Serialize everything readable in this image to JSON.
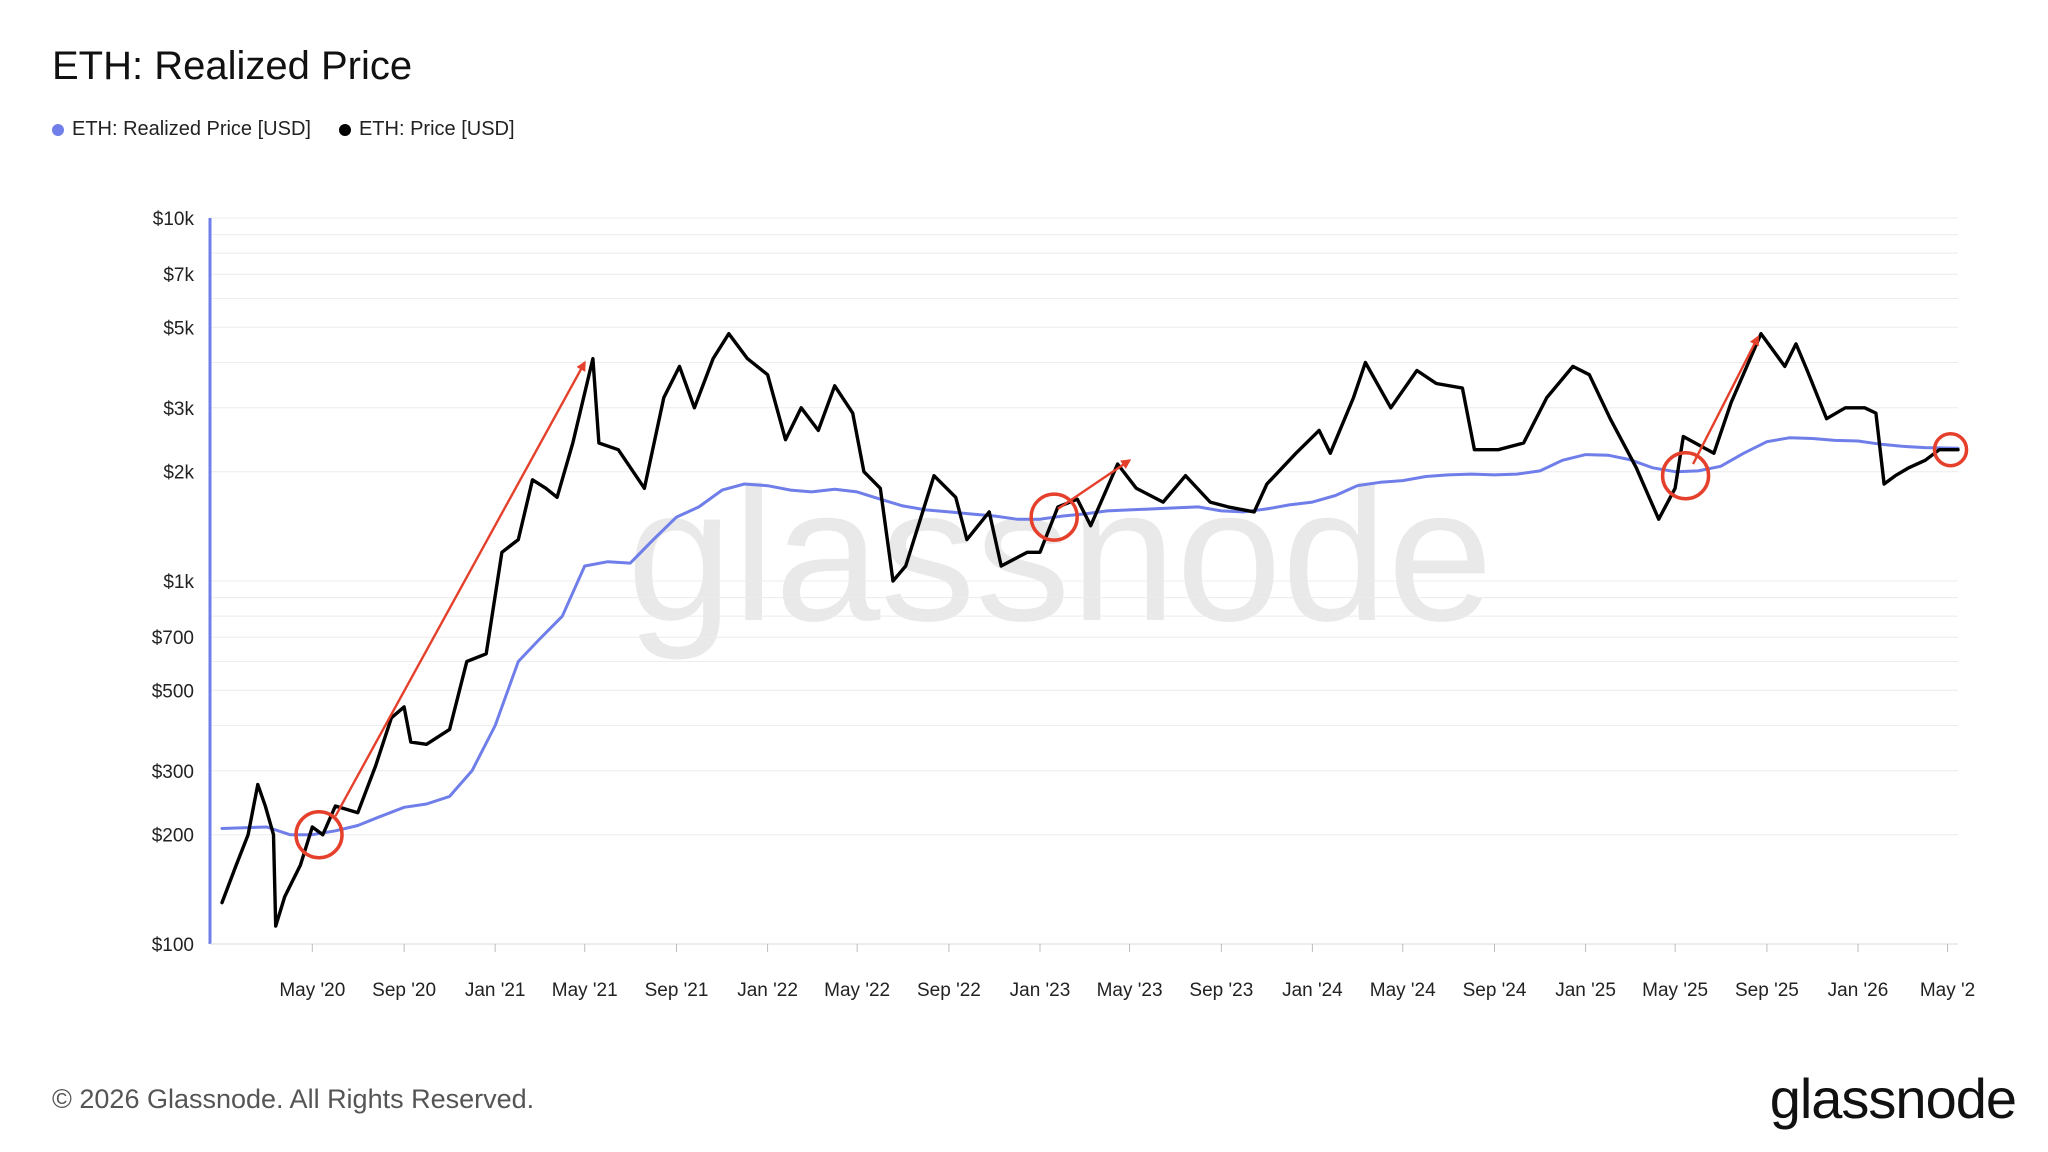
{
  "chart_data": {
    "type": "line",
    "title": "ETH: Realized Price",
    "yscale": "log",
    "ylim": [
      100,
      10000
    ],
    "xlim": [
      "2020-01-01",
      "2026-05-15"
    ],
    "grid": true,
    "legend_position": "top-left",
    "y_ticks": [
      {
        "value": 10000,
        "label": "$10k"
      },
      {
        "value": 7000,
        "label": "$7k"
      },
      {
        "value": 5000,
        "label": "$5k"
      },
      {
        "value": 3000,
        "label": "$3k"
      },
      {
        "value": 2000,
        "label": "$2k"
      },
      {
        "value": 1000,
        "label": "$1k"
      },
      {
        "value": 700,
        "label": "$700"
      },
      {
        "value": 500,
        "label": "$500"
      },
      {
        "value": 300,
        "label": "$300"
      },
      {
        "value": 200,
        "label": "$200"
      },
      {
        "value": 100,
        "label": "$100"
      }
    ],
    "x_ticks": [
      {
        "date": "2020-05-01",
        "label": "May '20"
      },
      {
        "date": "2020-09-01",
        "label": "Sep '20"
      },
      {
        "date": "2021-01-01",
        "label": "Jan '21"
      },
      {
        "date": "2021-05-01",
        "label": "May '21"
      },
      {
        "date": "2021-09-01",
        "label": "Sep '21"
      },
      {
        "date": "2022-01-01",
        "label": "Jan '22"
      },
      {
        "date": "2022-05-01",
        "label": "May '22"
      },
      {
        "date": "2022-09-01",
        "label": "Sep '22"
      },
      {
        "date": "2023-01-01",
        "label": "Jan '23"
      },
      {
        "date": "2023-05-01",
        "label": "May '23"
      },
      {
        "date": "2023-09-01",
        "label": "Sep '23"
      },
      {
        "date": "2024-01-01",
        "label": "Jan '24"
      },
      {
        "date": "2024-05-01",
        "label": "May '24"
      },
      {
        "date": "2024-09-01",
        "label": "Sep '24"
      },
      {
        "date": "2025-01-01",
        "label": "Jan '25"
      },
      {
        "date": "2025-05-01",
        "label": "May '25"
      },
      {
        "date": "2025-09-01",
        "label": "Sep '25"
      },
      {
        "date": "2026-01-01",
        "label": "Jan '26"
      },
      {
        "date": "2026-05-01",
        "label": "May '2"
      }
    ],
    "series": [
      {
        "name": "ETH: Realized Price [USD]",
        "color": "#6f7ee8",
        "points": [
          [
            "2020-01-01",
            208
          ],
          [
            "2020-03-01",
            210
          ],
          [
            "2020-04-01",
            200
          ],
          [
            "2020-05-01",
            200
          ],
          [
            "2020-06-01",
            205
          ],
          [
            "2020-07-01",
            212
          ],
          [
            "2020-08-01",
            225
          ],
          [
            "2020-09-01",
            238
          ],
          [
            "2020-10-01",
            243
          ],
          [
            "2020-11-01",
            255
          ],
          [
            "2020-12-01",
            300
          ],
          [
            "2021-01-01",
            400
          ],
          [
            "2021-02-01",
            600
          ],
          [
            "2021-03-01",
            690
          ],
          [
            "2021-04-01",
            800
          ],
          [
            "2021-05-01",
            1100
          ],
          [
            "2021-06-01",
            1130
          ],
          [
            "2021-07-01",
            1120
          ],
          [
            "2021-08-01",
            1300
          ],
          [
            "2021-09-01",
            1500
          ],
          [
            "2021-10-01",
            1600
          ],
          [
            "2021-11-01",
            1780
          ],
          [
            "2021-12-01",
            1850
          ],
          [
            "2022-01-01",
            1830
          ],
          [
            "2022-02-01",
            1780
          ],
          [
            "2022-03-01",
            1760
          ],
          [
            "2022-04-01",
            1790
          ],
          [
            "2022-05-01",
            1760
          ],
          [
            "2022-06-01",
            1680
          ],
          [
            "2022-07-01",
            1610
          ],
          [
            "2022-08-01",
            1570
          ],
          [
            "2022-09-01",
            1550
          ],
          [
            "2022-10-01",
            1530
          ],
          [
            "2022-11-01",
            1510
          ],
          [
            "2022-12-01",
            1480
          ],
          [
            "2023-01-01",
            1480
          ],
          [
            "2023-02-01",
            1510
          ],
          [
            "2023-03-01",
            1530
          ],
          [
            "2023-04-01",
            1560
          ],
          [
            "2023-05-01",
            1570
          ],
          [
            "2023-06-01",
            1580
          ],
          [
            "2023-07-01",
            1590
          ],
          [
            "2023-08-01",
            1600
          ],
          [
            "2023-09-01",
            1560
          ],
          [
            "2023-10-01",
            1550
          ],
          [
            "2023-11-01",
            1580
          ],
          [
            "2023-12-01",
            1620
          ],
          [
            "2024-01-01",
            1650
          ],
          [
            "2024-02-01",
            1720
          ],
          [
            "2024-03-01",
            1830
          ],
          [
            "2024-04-01",
            1870
          ],
          [
            "2024-05-01",
            1890
          ],
          [
            "2024-06-01",
            1940
          ],
          [
            "2024-07-01",
            1960
          ],
          [
            "2024-08-01",
            1970
          ],
          [
            "2024-09-01",
            1960
          ],
          [
            "2024-10-01",
            1970
          ],
          [
            "2024-11-01",
            2010
          ],
          [
            "2024-12-01",
            2150
          ],
          [
            "2025-01-01",
            2230
          ],
          [
            "2025-02-01",
            2220
          ],
          [
            "2025-03-01",
            2160
          ],
          [
            "2025-04-01",
            2050
          ],
          [
            "2025-05-01",
            2000
          ],
          [
            "2025-06-01",
            2010
          ],
          [
            "2025-07-01",
            2070
          ],
          [
            "2025-08-01",
            2250
          ],
          [
            "2025-09-01",
            2420
          ],
          [
            "2025-10-01",
            2480
          ],
          [
            "2025-11-01",
            2470
          ],
          [
            "2025-12-01",
            2440
          ],
          [
            "2026-01-01",
            2430
          ],
          [
            "2026-02-01",
            2380
          ],
          [
            "2026-03-01",
            2350
          ],
          [
            "2026-04-01",
            2330
          ],
          [
            "2026-05-15",
            2320
          ]
        ]
      },
      {
        "name": "ETH: Price [USD]",
        "color": "#000000",
        "points": [
          [
            "2020-01-01",
            130
          ],
          [
            "2020-01-20",
            165
          ],
          [
            "2020-02-05",
            200
          ],
          [
            "2020-02-18",
            275
          ],
          [
            "2020-02-28",
            240
          ],
          [
            "2020-03-10",
            200
          ],
          [
            "2020-03-13",
            112
          ],
          [
            "2020-03-25",
            135
          ],
          [
            "2020-04-15",
            165
          ],
          [
            "2020-05-01",
            210
          ],
          [
            "2020-05-15",
            200
          ],
          [
            "2020-06-01",
            240
          ],
          [
            "2020-07-01",
            230
          ],
          [
            "2020-07-25",
            310
          ],
          [
            "2020-08-15",
            420
          ],
          [
            "2020-09-01",
            450
          ],
          [
            "2020-09-10",
            360
          ],
          [
            "2020-10-01",
            355
          ],
          [
            "2020-11-01",
            390
          ],
          [
            "2020-11-24",
            600
          ],
          [
            "2020-12-20",
            630
          ],
          [
            "2021-01-10",
            1200
          ],
          [
            "2021-02-01",
            1300
          ],
          [
            "2021-02-20",
            1900
          ],
          [
            "2021-03-10",
            1800
          ],
          [
            "2021-03-25",
            1700
          ],
          [
            "2021-04-15",
            2400
          ],
          [
            "2021-05-12",
            4100
          ],
          [
            "2021-05-20",
            2400
          ],
          [
            "2021-06-15",
            2300
          ],
          [
            "2021-07-20",
            1800
          ],
          [
            "2021-08-15",
            3200
          ],
          [
            "2021-09-05",
            3900
          ],
          [
            "2021-09-25",
            3000
          ],
          [
            "2021-10-20",
            4100
          ],
          [
            "2021-11-10",
            4800
          ],
          [
            "2021-12-05",
            4100
          ],
          [
            "2022-01-01",
            3700
          ],
          [
            "2022-01-25",
            2450
          ],
          [
            "2022-02-15",
            3000
          ],
          [
            "2022-03-10",
            2600
          ],
          [
            "2022-04-01",
            3450
          ],
          [
            "2022-04-25",
            2900
          ],
          [
            "2022-05-10",
            2000
          ],
          [
            "2022-06-01",
            1800
          ],
          [
            "2022-06-18",
            1000
          ],
          [
            "2022-07-05",
            1100
          ],
          [
            "2022-08-12",
            1950
          ],
          [
            "2022-09-10",
            1700
          ],
          [
            "2022-09-25",
            1300
          ],
          [
            "2022-10-25",
            1550
          ],
          [
            "2022-11-10",
            1100
          ],
          [
            "2022-12-15",
            1200
          ],
          [
            "2023-01-01",
            1200
          ],
          [
            "2023-01-25",
            1600
          ],
          [
            "2023-02-20",
            1680
          ],
          [
            "2023-03-10",
            1420
          ],
          [
            "2023-04-15",
            2100
          ],
          [
            "2023-05-10",
            1800
          ],
          [
            "2023-06-15",
            1650
          ],
          [
            "2023-07-15",
            1950
          ],
          [
            "2023-08-17",
            1650
          ],
          [
            "2023-09-10",
            1600
          ],
          [
            "2023-10-15",
            1550
          ],
          [
            "2023-11-01",
            1850
          ],
          [
            "2023-12-10",
            2250
          ],
          [
            "2024-01-10",
            2600
          ],
          [
            "2024-01-25",
            2250
          ],
          [
            "2024-02-25",
            3200
          ],
          [
            "2024-03-12",
            4000
          ],
          [
            "2024-04-15",
            3000
          ],
          [
            "2024-05-20",
            3800
          ],
          [
            "2024-06-15",
            3500
          ],
          [
            "2024-07-20",
            3400
          ],
          [
            "2024-08-05",
            2300
          ],
          [
            "2024-09-06",
            2300
          ],
          [
            "2024-10-10",
            2400
          ],
          [
            "2024-11-10",
            3200
          ],
          [
            "2024-12-15",
            3900
          ],
          [
            "2025-01-06",
            3700
          ],
          [
            "2025-02-03",
            2800
          ],
          [
            "2025-03-10",
            2050
          ],
          [
            "2025-04-09",
            1480
          ],
          [
            "2025-05-01",
            1800
          ],
          [
            "2025-05-12",
            2500
          ],
          [
            "2025-06-22",
            2250
          ],
          [
            "2025-07-15",
            3100
          ],
          [
            "2025-08-24",
            4800
          ],
          [
            "2025-09-25",
            3900
          ],
          [
            "2025-10-10",
            4500
          ],
          [
            "2025-10-25",
            3800
          ],
          [
            "2025-11-20",
            2800
          ],
          [
            "2025-12-15",
            3000
          ],
          [
            "2026-01-10",
            3000
          ],
          [
            "2026-01-25",
            2900
          ],
          [
            "2026-02-05",
            1850
          ],
          [
            "2026-02-20",
            1950
          ],
          [
            "2026-03-10",
            2050
          ],
          [
            "2026-04-01",
            2150
          ],
          [
            "2026-04-20",
            2300
          ],
          [
            "2026-05-15",
            2300
          ]
        ]
      }
    ],
    "annotations": {
      "color": "#e5402b",
      "circles": [
        {
          "date": "2020-05-10",
          "value": 200
        },
        {
          "date": "2023-01-20",
          "value": 1500
        },
        {
          "date": "2025-05-15",
          "value": 1950
        },
        {
          "date": "2026-05-05",
          "value": 2300
        }
      ],
      "arrows": [
        {
          "from": {
            "date": "2020-06-01",
            "value": 225
          },
          "to": {
            "date": "2021-05-01",
            "value": 4000
          }
        },
        {
          "from": {
            "date": "2023-01-25",
            "value": 1580
          },
          "to": {
            "date": "2023-05-01",
            "value": 2150
          }
        },
        {
          "from": {
            "date": "2025-05-25",
            "value": 2100
          },
          "to": {
            "date": "2025-08-20",
            "value": 4700
          }
        }
      ]
    },
    "watermark": "glassnode"
  },
  "footer": {
    "copyright": "© 2026 Glassnode. All Rights Reserved.",
    "brand": "glassnode"
  }
}
